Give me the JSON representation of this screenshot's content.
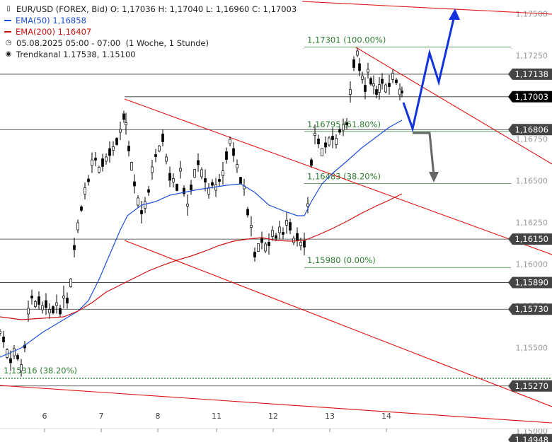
{
  "header": {
    "title": "EUR/USD (FOREX, Bid)",
    "ohlc": "O: 1,17036  H: 1,17040  L: 1,16960  C: 1,17003",
    "ema50_label": "EMA(50)",
    "ema50_value": "1,16858",
    "ema200_label": "EMA(200)",
    "ema200_value": "1,16407",
    "time_range": "05.08.2025 05:00 - 07:00",
    "time_frame": "(1 Woche, 1 Stunde)",
    "channel_label": "Trendkanal",
    "channel_values": "1.17538, 1.15100"
  },
  "colors": {
    "candle": "#000000",
    "ema50": "#1d4ed8",
    "ema200": "#cc1111",
    "trend": "#e01010",
    "fib": "#2e7d32",
    "level": "#333333",
    "badge_bg": "#444444",
    "badge_last": "#000000",
    "arrow_up": "#1133dd",
    "arrow_down": "#666666"
  },
  "chart_data": {
    "type": "candlestick",
    "ylim": [
      1.14948,
      1.17538
    ],
    "y_ticks": [
      "1,17500",
      "1,17250",
      "1,16750",
      "1,16500",
      "1,16250",
      "1,16000",
      "1,15750",
      "1,15500",
      "1,15000"
    ],
    "x_ticks": [
      "6",
      "7",
      "8",
      "11",
      "12",
      "13",
      "14"
    ],
    "levels": [
      {
        "value": 1.17138,
        "label": "1,17138"
      },
      {
        "value": 1.17003,
        "label": "1,17003",
        "last": true
      },
      {
        "value": 1.16806,
        "label": "1,16806"
      },
      {
        "value": 1.1615,
        "label": "1,16150"
      },
      {
        "value": 1.1589,
        "label": "1,15890"
      },
      {
        "value": 1.1573,
        "label": "1,15730"
      },
      {
        "value": 1.1527,
        "label": "1,15270"
      },
      {
        "value": 1.14948,
        "label": "1,14948"
      }
    ],
    "fib_levels": [
      {
        "value": 1.17301,
        "label": "1,17301 (100.00%)"
      },
      {
        "value": 1.16795,
        "label": "1,16795 (61.80%)"
      },
      {
        "value": 1.16483,
        "label": "1,16483 (38.20%)"
      },
      {
        "value": 1.1598,
        "label": "1,15980 (0.00%)"
      }
    ],
    "support_fib": {
      "value": 1.15316,
      "label": "1,15316 (38.20%)"
    },
    "scenarios": [
      "up: 1,17500",
      "down: 1,16500"
    ]
  }
}
